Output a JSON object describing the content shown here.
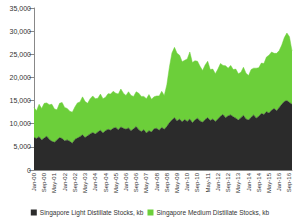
{
  "chart_data": {
    "type": "area",
    "stacked": true,
    "legend": "bottom",
    "grid": false,
    "categories": [
      "Jan-00",
      null,
      null,
      null,
      "Sep-00",
      null,
      null,
      null,
      "May-01",
      null,
      null,
      null,
      "Jan-02",
      null,
      null,
      null,
      "Sep-02",
      null,
      null,
      null,
      "May-03",
      null,
      null,
      null,
      "Jan-04",
      null,
      null,
      null,
      "Sep-04",
      null,
      null,
      null,
      "May-05",
      null,
      null,
      null,
      "Jan-06",
      null,
      null,
      null,
      "Sep-06",
      null,
      null,
      null,
      "May-07",
      null,
      null,
      null,
      "Jan-08",
      null,
      null,
      null,
      "Sep-08",
      null,
      null,
      null,
      "May-09",
      null,
      null,
      null,
      "Jan-10",
      null,
      null,
      null,
      "Sep-10",
      null,
      null,
      null,
      "May-11",
      null,
      null,
      null,
      "Jan-12",
      null,
      null,
      null,
      "Sep-12",
      null,
      null,
      null,
      "May-13",
      null,
      null,
      null,
      "Jan-14",
      null,
      null,
      null,
      "Sep-14",
      null,
      null,
      null,
      "May-15",
      null,
      null,
      null,
      "Jan-16",
      null,
      null,
      null,
      "Sep-16",
      null
    ],
    "ylim": [
      0,
      35000
    ],
    "yticks": [
      0,
      {
        "value": 5000,
        "label": "5,000"
      },
      {
        "value": 10000,
        "label": "10,000"
      },
      {
        "value": 15000,
        "label": "15,000"
      },
      {
        "value": 20000,
        "label": "20,000"
      },
      {
        "value": 25000,
        "label": "25,000"
      },
      {
        "value": 30000,
        "label": "30,000"
      },
      {
        "value": 35000,
        "label": "35,000"
      }
    ],
    "series": [
      {
        "name": "Singapore Light Distillate Stocks, kb",
        "color": "#2b2b2b",
        "values": [
          7000,
          6800,
          7200,
          6500,
          6900,
          7300,
          6600,
          6200,
          6000,
          6500,
          7000,
          6800,
          6300,
          6500,
          6200,
          5800,
          6600,
          6900,
          7200,
          7600,
          7000,
          7400,
          7800,
          8100,
          7800,
          8200,
          8600,
          8000,
          8500,
          8800,
          8600,
          9000,
          9200,
          8700,
          9300,
          9000,
          8800,
          9100,
          8500,
          8900,
          9400,
          8700,
          8300,
          8700,
          8000,
          8500,
          8200,
          8900,
          9000,
          8600,
          9200,
          8800,
          9400,
          10200,
          10800,
          11300,
          10600,
          11000,
          10400,
          10900,
          10500,
          11000,
          10200,
          10800,
          11200,
          10600,
          10300,
          10900,
          11300,
          10700,
          11000,
          10500,
          11000,
          11600,
          12000,
          11300,
          11700,
          11900,
          11500,
          11200,
          10800,
          11300,
          11800,
          11000,
          10800,
          11400,
          11900,
          11200,
          11600,
          12200,
          12000,
          12600,
          12300,
          12900,
          13300,
          12800,
          13500,
          14200,
          14800,
          15000,
          14600,
          14200
        ]
      },
      {
        "name": "Singapore Medium Distillate Stocks, kb",
        "color": "#6ccf3a",
        "values": [
          6500,
          6000,
          7000,
          6800,
          7500,
          7200,
          7500,
          8000,
          7200,
          6500,
          7400,
          7800,
          7200,
          6800,
          6500,
          6700,
          7000,
          7600,
          7500,
          8200,
          7800,
          7000,
          7600,
          7900,
          7600,
          7300,
          7800,
          7400,
          7200,
          7700,
          7800,
          8000,
          7400,
          7700,
          8200,
          7600,
          7300,
          7800,
          7600,
          7000,
          7500,
          7900,
          7600,
          7200,
          7400,
          7800,
          7100,
          6900,
          7000,
          7400,
          7800,
          7300,
          9000,
          12000,
          14500,
          15200,
          14600,
          13800,
          13000,
          12800,
          13500,
          14500,
          13000,
          12800,
          12300,
          11800,
          11200,
          11800,
          12200,
          11000,
          10800,
          10300,
          10800,
          11400,
          10600,
          11200,
          10300,
          10700,
          10200,
          10600,
          10000,
          9800,
          10400,
          9900,
          9600,
          10300,
          10100,
          10800,
          10500,
          10900,
          11000,
          11800,
          12500,
          12600,
          11900,
          12400,
          12300,
          12800,
          13800,
          14600,
          14200,
          11500
        ]
      }
    ]
  }
}
